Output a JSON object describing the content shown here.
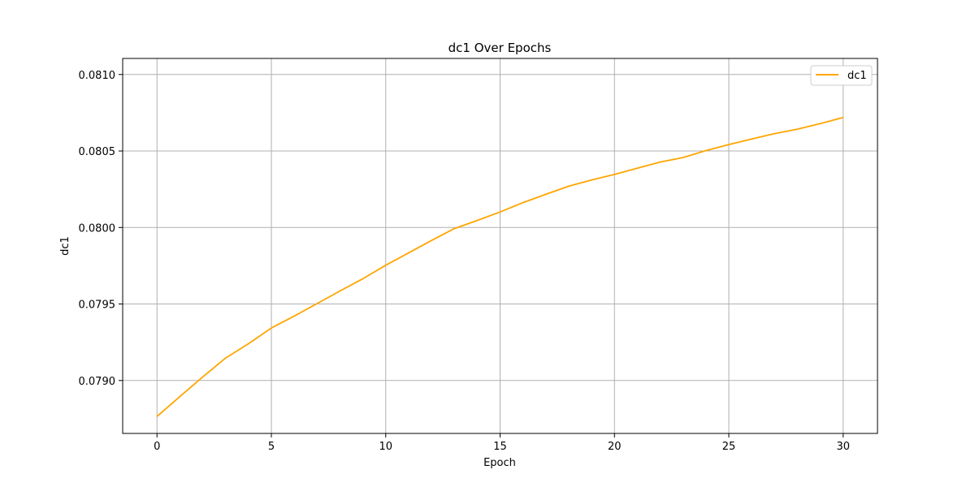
{
  "chart_data": {
    "type": "line",
    "title": "dc1 Over Epochs",
    "xlabel": "Epoch",
    "ylabel": "dc1",
    "xlim": [
      -1.5,
      31.5
    ],
    "ylim": [
      0.078654,
      0.081105
    ],
    "xticks": [
      0,
      5,
      10,
      15,
      20,
      25,
      30
    ],
    "xtick_labels": [
      "0",
      "5",
      "10",
      "15",
      "20",
      "25",
      "30"
    ],
    "yticks": [
      0.079,
      0.0795,
      0.08,
      0.0805,
      0.081
    ],
    "ytick_labels": [
      "0.0790",
      "0.0795",
      "0.0800",
      "0.0805",
      "0.0810"
    ],
    "grid": true,
    "legend_position": "top-right",
    "series": [
      {
        "name": "dc1",
        "color": "#ffa500",
        "x": [
          0,
          1,
          2,
          3,
          4,
          5,
          6,
          7,
          8,
          9,
          10,
          11,
          12,
          13,
          14,
          15,
          16,
          17,
          18,
          19,
          20,
          21,
          22,
          23,
          24,
          25,
          26,
          27,
          28,
          29,
          30
        ],
        "values": [
          0.078765,
          0.078895,
          0.079023,
          0.079147,
          0.07924,
          0.079343,
          0.079421,
          0.079503,
          0.079585,
          0.079665,
          0.079753,
          0.079834,
          0.079915,
          0.079993,
          0.080046,
          0.080101,
          0.080163,
          0.080217,
          0.08027,
          0.080311,
          0.080347,
          0.080388,
          0.080428,
          0.080457,
          0.080503,
          0.080542,
          0.080578,
          0.080614,
          0.080643,
          0.080679,
          0.080719
        ]
      }
    ]
  }
}
